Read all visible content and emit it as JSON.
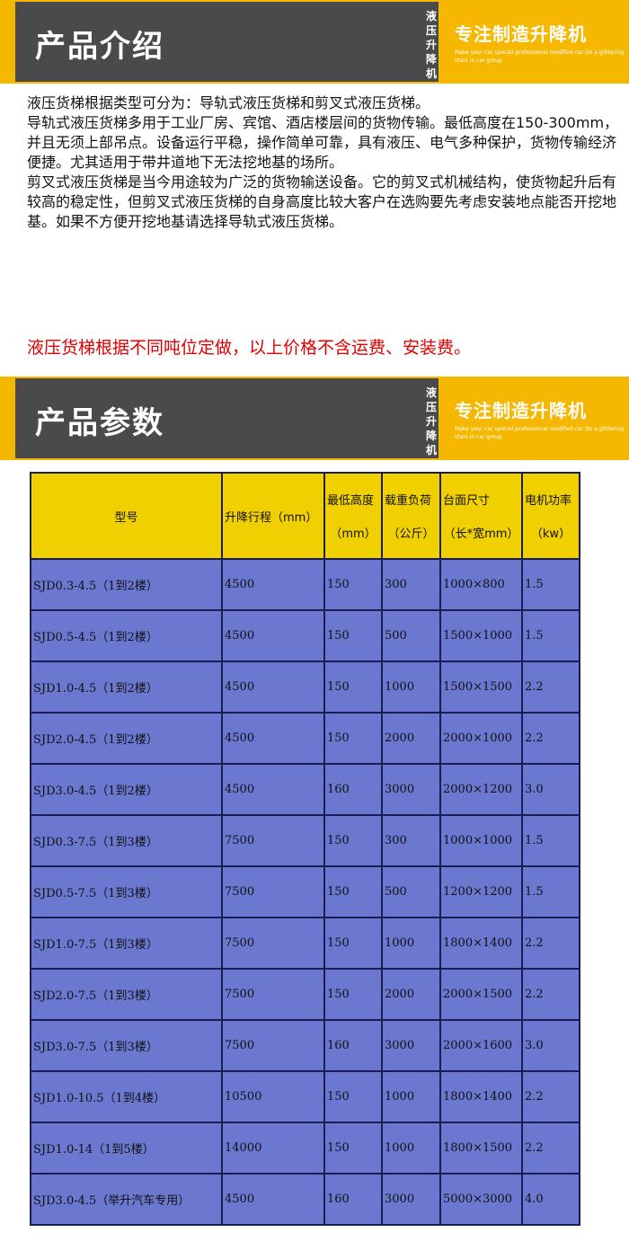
{
  "banner1": {
    "title": "产品介绍",
    "vertical": "液压升降机",
    "slogan": "专注制造升降机",
    "sub": "Make your car special professional modified car Do a glittering stars in car group"
  },
  "intro": [
    "液压货梯根据类型可分为：导轨式液压货梯和剪叉式液压货梯。",
    "导轨式液压货梯多用于工业厂房、宾馆、酒店楼层间的货物传输。最低高度在150-300mm，并且无须上部吊点。设备运行平稳，操作简单可靠，具有液压、电气多种保护，货物传输经济便捷。尤其适用于带井道地下无法挖地基的场所。",
    "剪叉式液压货梯是当今用途较为广泛的货物输送设备。它的剪叉式机械结构，使货物起升后有较高的稳定性，但剪叉式液压货梯的自身高度比较大客户在选购要先考虑安装地点能否开挖地基。如果不方便开挖地基请选择导轨式液压货梯。"
  ],
  "notice": "液压货梯根据不同吨位定做，以上价格不含运费、安装费。",
  "banner2": {
    "title": "产品参数",
    "vertical": "液压升降机",
    "slogan": "专注制造升降机",
    "sub": "Make your car special professional modified car Do a glittering stars in car group"
  },
  "colors": {
    "yellow": "#f5b700",
    "dark": "#4a4a4a",
    "header": "#f0d000",
    "row": "#6a78d0",
    "notice": "#e00000"
  },
  "table": {
    "headers": [
      [
        "型号",
        ""
      ],
      [
        "升降行程（mm）",
        ""
      ],
      [
        "最低高度",
        "（mm）"
      ],
      [
        "载重负荷",
        "（公斤）"
      ],
      [
        "台面尺寸",
        "（长*宽mm）"
      ],
      [
        "电机功率",
        "（kw）"
      ]
    ],
    "rows": [
      [
        "SJD0.3-4.5（1到2楼）",
        "4500",
        "150",
        "300",
        "1000×800",
        "1.5"
      ],
      [
        "SJD0.5-4.5（1到2楼）",
        "4500",
        "150",
        "500",
        "1500×1000",
        "1.5"
      ],
      [
        "SJD1.0-4.5（1到2楼）",
        "4500",
        "150",
        "1000",
        "1500×1500",
        "2.2"
      ],
      [
        "SJD2.0-4.5（1到2楼）",
        "4500",
        "150",
        "2000",
        "2000×1000",
        "2.2"
      ],
      [
        "SJD3.0-4.5（1到2楼）",
        "4500",
        "160",
        "3000",
        "2000×1200",
        "3.0"
      ],
      [
        "SJD0.3-7.5（1到3楼）",
        "7500",
        "150",
        "300",
        "1000×1000",
        "1.5"
      ],
      [
        "SJD0.5-7.5（1到3楼）",
        "7500",
        "150",
        "500",
        "1200×1200",
        "1.5"
      ],
      [
        "SJD1.0-7.5（1到3楼）",
        "7500",
        "150",
        "1000",
        "1800×1400",
        "2.2"
      ],
      [
        "SJD2.0-7.5（1到3楼）",
        "7500",
        "150",
        "2000",
        "2000×1500",
        "2.2"
      ],
      [
        "SJD3.0-7.5（1到3楼）",
        "7500",
        "160",
        "3000",
        "2000×1600",
        "3.0"
      ],
      [
        "SJD1.0-10.5（1到4楼）",
        "10500",
        "150",
        "1000",
        "1800×1400",
        "2.2"
      ],
      [
        "SJD1.0-14（1到5楼）",
        "14000",
        "150",
        "1000",
        "1800×1500",
        "2.2"
      ],
      [
        "SJD3.0-4.5（举升汽车专用）",
        "4500",
        "160",
        "3000",
        "5000×3000",
        "4.0"
      ]
    ]
  }
}
